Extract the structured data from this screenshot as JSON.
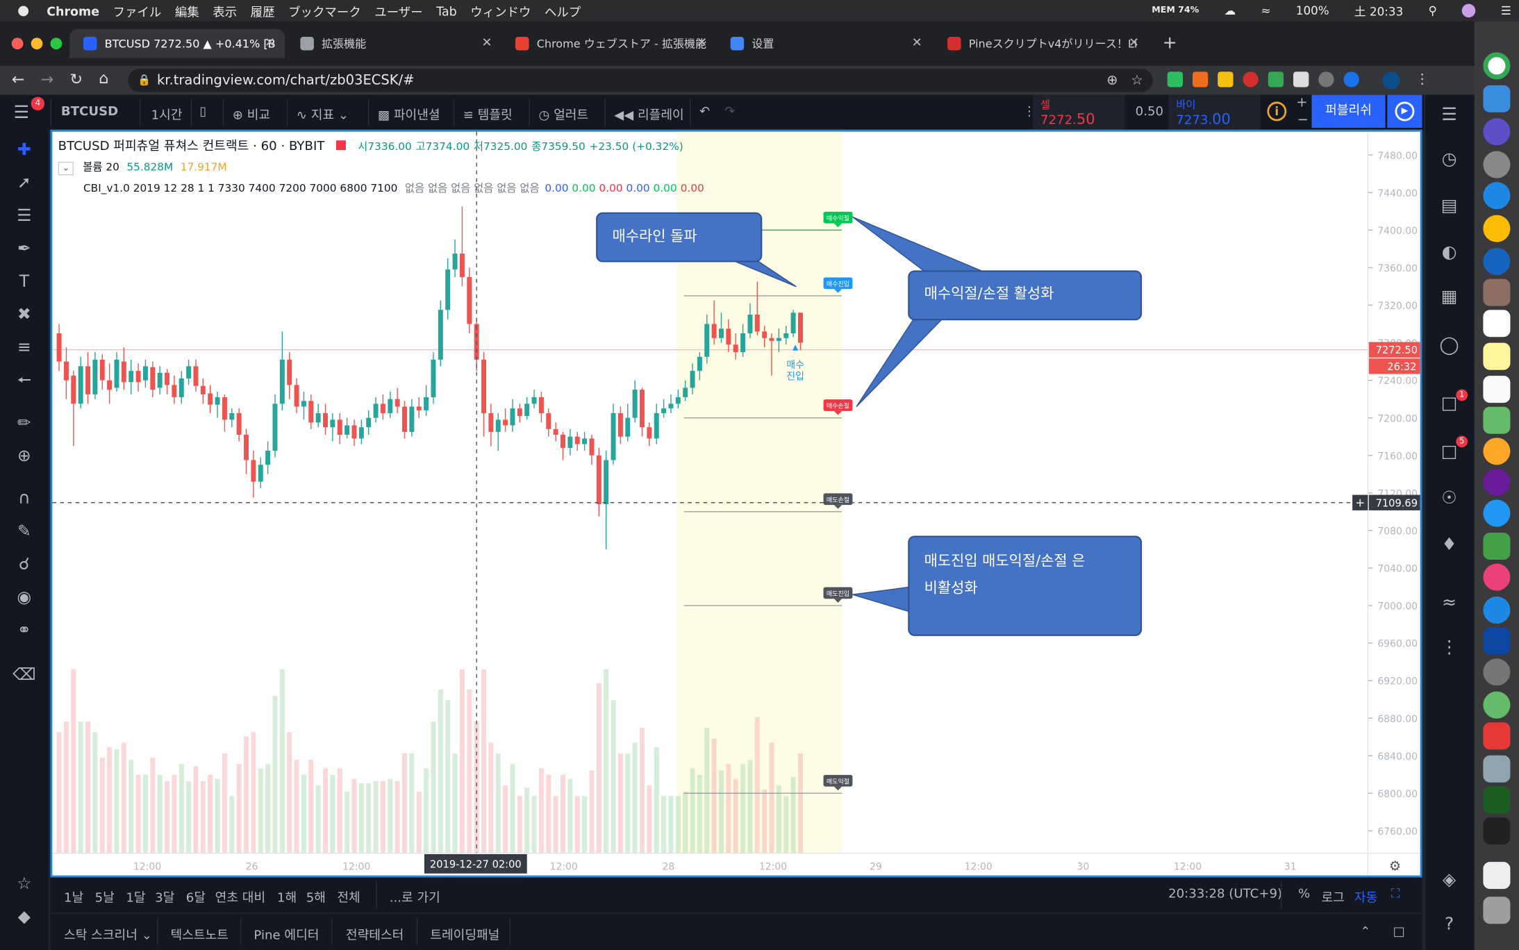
{
  "menubar": {
    "apple": "",
    "app": "Chrome",
    "items": [
      "ファイル",
      "編集",
      "表示",
      "履歴",
      "ブックマーク",
      "ユーザー",
      "Tab",
      "ウィンドウ",
      "ヘルプ"
    ],
    "mem": "MEM 74%",
    "battery": "100%",
    "time": "土 20:33"
  },
  "tabs": [
    {
      "label": "BTCUSD 7272.50 ▲ +0.41% [B",
      "active": true
    },
    {
      "label": "拡張機能"
    },
    {
      "label": "Chrome ウェブストア - 拡張機能"
    },
    {
      "label": "设置"
    },
    {
      "label": "Pineスクリプトv4がリリース！Li"
    }
  ],
  "address": {
    "url": "kr.tradingview.com/chart/zb03ECSK/#"
  },
  "toolbar": {
    "symbol": "BTCUSD",
    "interval": "1시간",
    "compare": "비교",
    "indicators": "지표",
    "financials": "파이낸셜",
    "templates": "템플릿",
    "alert": "얼러트",
    "replay": "리플레이",
    "sell_label": "셀",
    "sell_price_main": "7272.",
    "sell_price_tail": "50",
    "spread": "0.50",
    "buy_label": "바이",
    "buy_price_main": "7273.",
    "buy_price_tail": "00",
    "publish": "퍼블리쉬"
  },
  "legend": {
    "title": "BTCUSD 퍼피츄얼 퓨쳐스 컨트랙트 · 60 · BYBIT",
    "o": "시7336.00",
    "h": "고7374.00",
    "l": "저7325.00",
    "c": "종7359.50",
    "chg": "+23.50 (+0.32%)",
    "volume_label": "볼륨 20",
    "volume_val1": "55.828M",
    "volume_val2": "17.917M",
    "cbi_label": "CBI_v1.0 2019 12 28 1 1 7330 7400 7200 7000 6800 7100",
    "cbi_none": "없음 없음 없음 없음 없음 없음",
    "cbi_vals": [
      "0.00",
      "0.00",
      "0.00",
      "0.00",
      "0.00",
      "0.00"
    ]
  },
  "markers": {
    "buy_tp": "매수익절",
    "buy_entry": "매수진입",
    "buy_sl": "매수손절",
    "sell_sl": "매도손절",
    "sell_entry": "매도진입",
    "sell_tp": "매도익절",
    "entry_note_1": "매수",
    "entry_note_2": "진입"
  },
  "callouts": {
    "breakout": "매수라인 돌파",
    "buy_active": "매수익절/손절 활성화",
    "sell_inactive_1": "매도진입 매도익절/손절 은",
    "sell_inactive_2": "비활성화"
  },
  "price_axis": {
    "last_price": "7272.50",
    "countdown": "26:32",
    "crosshair_price": "7109.69"
  },
  "time_axis": {
    "crosshair_label": "2019-12-27   02:00",
    "ticks": [
      "12:00",
      "26",
      "12:00",
      "12:00",
      "28",
      "12:00",
      "29",
      "12:00",
      "30",
      "12:00",
      "31"
    ]
  },
  "bottom": {
    "ranges": [
      "1날",
      "5날",
      "1달",
      "3달",
      "6달",
      "연초 대비",
      "1해",
      "5해",
      "전체"
    ],
    "goto": "...로 가기",
    "clock": "20:33:28 (UTC+9)",
    "pct": "%",
    "log": "로그",
    "auto": "자동"
  },
  "panels": [
    "스탁 스크리너",
    "텍스트노트",
    "Pine 에디터",
    "전략테스터",
    "트레이딩패널"
  ],
  "chart_data": {
    "type": "candlestick",
    "symbol": "BTCUSD",
    "timeframe": "60",
    "exchange": "BYBIT",
    "ylim": [
      6740,
      7500
    ],
    "y_ticks": [
      7480,
      7440,
      7400,
      7360,
      7320,
      7280,
      7240,
      7200,
      7160,
      7120,
      7080,
      7040,
      7000,
      6960,
      6920,
      6880,
      6840,
      6800,
      6760
    ],
    "levels": {
      "buy_tp": 7400,
      "buy_entry": 7330,
      "buy_sl": 7200,
      "sell_sl": 7100,
      "sell_entry": 7000,
      "sell_tp": 6800,
      "last": 7272.5,
      "crosshair": 7109.69
    },
    "candles": [
      [
        7290,
        7260,
        7300,
        7250
      ],
      [
        7260,
        7240,
        7275,
        7220
      ],
      [
        7245,
        7215,
        7250,
        7170
      ],
      [
        7215,
        7255,
        7265,
        7210
      ],
      [
        7255,
        7225,
        7270,
        7215
      ],
      [
        7225,
        7262,
        7270,
        7220
      ],
      [
        7262,
        7240,
        7268,
        7230
      ],
      [
        7240,
        7230,
        7258,
        7215
      ],
      [
        7232,
        7262,
        7270,
        7228
      ],
      [
        7260,
        7238,
        7275,
        7230
      ],
      [
        7238,
        7250,
        7262,
        7225
      ],
      [
        7250,
        7238,
        7258,
        7228
      ],
      [
        7240,
        7255,
        7262,
        7232
      ],
      [
        7254,
        7230,
        7260,
        7222
      ],
      [
        7232,
        7248,
        7255,
        7225
      ],
      [
        7248,
        7235,
        7252,
        7225
      ],
      [
        7235,
        7222,
        7245,
        7215
      ],
      [
        7222,
        7242,
        7250,
        7215
      ],
      [
        7242,
        7255,
        7262,
        7235
      ],
      [
        7255,
        7234,
        7262,
        7228
      ],
      [
        7234,
        7225,
        7242,
        7215
      ],
      [
        7226,
        7214,
        7235,
        7205
      ],
      [
        7214,
        7222,
        7228,
        7200
      ],
      [
        7222,
        7198,
        7225,
        7185
      ],
      [
        7198,
        7205,
        7210,
        7190
      ],
      [
        7205,
        7182,
        7210,
        7175
      ],
      [
        7182,
        7155,
        7188,
        7140
      ],
      [
        7155,
        7132,
        7165,
        7115
      ],
      [
        7132,
        7150,
        7158,
        7125
      ],
      [
        7150,
        7165,
        7175,
        7140
      ],
      [
        7165,
        7215,
        7225,
        7158
      ],
      [
        7215,
        7262,
        7292,
        7208
      ],
      [
        7262,
        7235,
        7270,
        7220
      ],
      [
        7235,
        7212,
        7242,
        7205
      ],
      [
        7212,
        7218,
        7228,
        7198
      ],
      [
        7218,
        7195,
        7225,
        7188
      ],
      [
        7195,
        7205,
        7215,
        7190
      ],
      [
        7205,
        7190,
        7215,
        7182
      ],
      [
        7190,
        7198,
        7205,
        7175
      ],
      [
        7198,
        7182,
        7205,
        7172
      ],
      [
        7182,
        7192,
        7200,
        7178
      ],
      [
        7192,
        7178,
        7198,
        7170
      ],
      [
        7178,
        7190,
        7198,
        7172
      ],
      [
        7190,
        7200,
        7208,
        7182
      ],
      [
        7200,
        7215,
        7222,
        7195
      ],
      [
        7215,
        7205,
        7225,
        7198
      ],
      [
        7205,
        7220,
        7228,
        7200
      ],
      [
        7220,
        7212,
        7232,
        7205
      ],
      [
        7212,
        7185,
        7218,
        7178
      ],
      [
        7185,
        7212,
        7220,
        7180
      ],
      [
        7212,
        7208,
        7222,
        7200
      ],
      [
        7208,
        7222,
        7235,
        7202
      ],
      [
        7222,
        7262,
        7270,
        7215
      ],
      [
        7262,
        7315,
        7325,
        7255
      ],
      [
        7315,
        7358,
        7370,
        7305
      ],
      [
        7358,
        7375,
        7390,
        7350
      ],
      [
        7375,
        7350,
        7425,
        7340
      ],
      [
        7350,
        7300,
        7360,
        7290
      ],
      [
        7300,
        7262,
        7305,
        7250
      ],
      [
        7262,
        7205,
        7270,
        7180
      ],
      [
        7205,
        7185,
        7215,
        7170
      ],
      [
        7185,
        7198,
        7205,
        7165
      ],
      [
        7198,
        7192,
        7210,
        7185
      ],
      [
        7192,
        7210,
        7220,
        7185
      ],
      [
        7210,
        7202,
        7215,
        7195
      ],
      [
        7202,
        7215,
        7222,
        7198
      ],
      [
        7215,
        7222,
        7230,
        7210
      ],
      [
        7222,
        7205,
        7228,
        7195
      ],
      [
        7205,
        7188,
        7210,
        7180
      ],
      [
        7188,
        7182,
        7195,
        7175
      ],
      [
        7182,
        7168,
        7185,
        7155
      ],
      [
        7168,
        7180,
        7188,
        7160
      ],
      [
        7180,
        7172,
        7185,
        7165
      ],
      [
        7172,
        7178,
        7185,
        7165
      ],
      [
        7178,
        7160,
        7182,
        7150
      ],
      [
        7160,
        7108,
        7168,
        7095
      ],
      [
        7108,
        7155,
        7165,
        7060
      ],
      [
        7155,
        7205,
        7215,
        7150
      ],
      [
        7205,
        7180,
        7212,
        7172
      ],
      [
        7180,
        7200,
        7215,
        7175
      ],
      [
        7200,
        7230,
        7240,
        7195
      ],
      [
        7230,
        7190,
        7232,
        7180
      ],
      [
        7190,
        7178,
        7195,
        7170
      ],
      [
        7178,
        7205,
        7215,
        7172
      ],
      [
        7205,
        7210,
        7220,
        7200
      ],
      [
        7210,
        7215,
        7225,
        7205
      ],
      [
        7215,
        7222,
        7230,
        7210
      ],
      [
        7222,
        7232,
        7240,
        7218
      ],
      [
        7232,
        7250,
        7258,
        7225
      ],
      [
        7250,
        7265,
        7270,
        7240
      ],
      [
        7265,
        7300,
        7310,
        7258
      ],
      [
        7300,
        7285,
        7325,
        7278
      ],
      [
        7285,
        7295,
        7312,
        7280
      ],
      [
        7295,
        7278,
        7305,
        7270
      ],
      [
        7278,
        7270,
        7290,
        7262
      ],
      [
        7270,
        7290,
        7300,
        7265
      ],
      [
        7290,
        7310,
        7322,
        7285
      ],
      [
        7310,
        7292,
        7345,
        7288
      ],
      [
        7292,
        7285,
        7298,
        7275
      ],
      [
        7285,
        7282,
        7290,
        7245
      ],
      [
        7282,
        7285,
        7295,
        7270
      ],
      [
        7285,
        7290,
        7298,
        7278
      ],
      [
        7290,
        7312,
        7315,
        7286
      ],
      [
        7312,
        7280,
        7312,
        7272
      ]
    ]
  }
}
